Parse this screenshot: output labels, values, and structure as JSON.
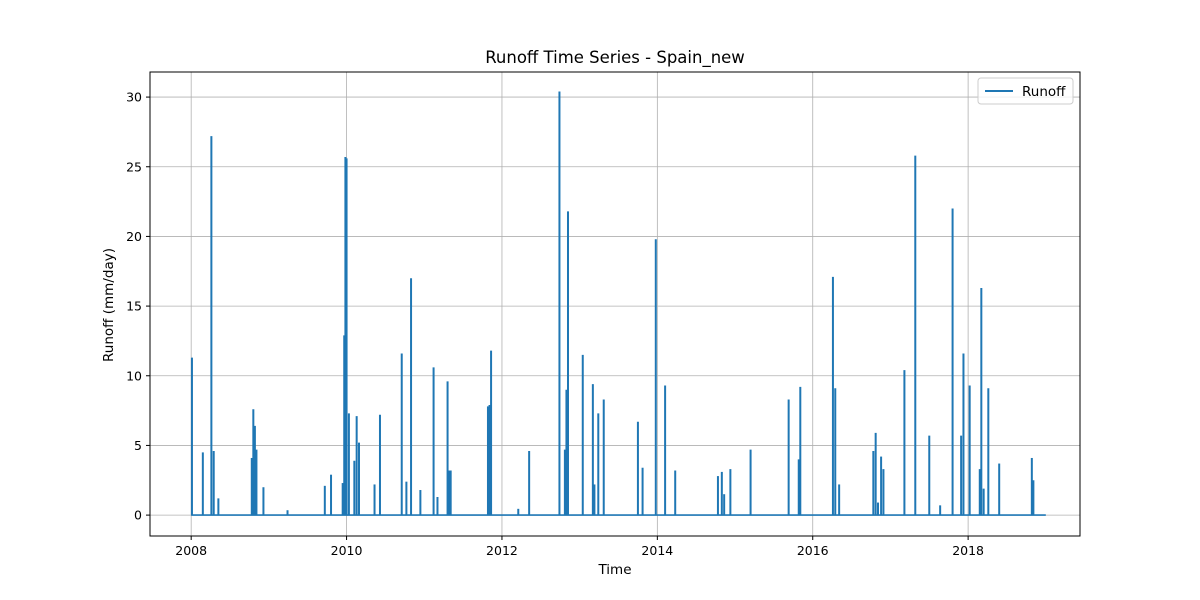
{
  "chart_data": {
    "type": "line",
    "title": "Runoff Time Series - Spain_new",
    "xlabel": "Time",
    "ylabel": "Runoff (mm/day)",
    "xlim": [
      2007.47,
      2019.44
    ],
    "ylim": [
      -1.5,
      31.8
    ],
    "x_ticks": [
      2008,
      2010,
      2012,
      2014,
      2016,
      2018
    ],
    "x_tick_labels": [
      "2008",
      "2010",
      "2012",
      "2014",
      "2016",
      "2018"
    ],
    "y_ticks": [
      0,
      5,
      10,
      15,
      20,
      25,
      30
    ],
    "y_tick_labels": [
      "0",
      "5",
      "10",
      "15",
      "20",
      "25",
      "30"
    ],
    "grid": true,
    "legend_position": "top-right",
    "series": [
      {
        "name": "Runoff",
        "color": "#1f77b4",
        "x_range": [
          2008.0,
          2019.0
        ],
        "spikes": [
          [
            2008.01,
            11.3
          ],
          [
            2008.15,
            4.5
          ],
          [
            2008.26,
            27.2
          ],
          [
            2008.29,
            4.6
          ],
          [
            2008.35,
            1.2
          ],
          [
            2008.78,
            4.1
          ],
          [
            2008.8,
            7.6
          ],
          [
            2008.82,
            6.4
          ],
          [
            2008.84,
            4.7
          ],
          [
            2008.93,
            2.0
          ],
          [
            2009.24,
            0.35
          ],
          [
            2009.72,
            2.1
          ],
          [
            2009.8,
            2.9
          ],
          [
            2009.95,
            2.3
          ],
          [
            2009.97,
            12.9
          ],
          [
            2009.985,
            25.7
          ],
          [
            2010.0,
            25.6
          ],
          [
            2010.03,
            7.3
          ],
          [
            2010.1,
            3.9
          ],
          [
            2010.13,
            7.1
          ],
          [
            2010.16,
            5.2
          ],
          [
            2010.36,
            2.2
          ],
          [
            2010.43,
            7.2
          ],
          [
            2010.71,
            11.6
          ],
          [
            2010.77,
            2.4
          ],
          [
            2010.83,
            17.0
          ],
          [
            2010.95,
            1.8
          ],
          [
            2011.12,
            10.6
          ],
          [
            2011.17,
            1.3
          ],
          [
            2011.3,
            9.6
          ],
          [
            2011.32,
            3.2
          ],
          [
            2011.34,
            3.2
          ],
          [
            2011.82,
            7.8
          ],
          [
            2011.84,
            7.9
          ],
          [
            2011.86,
            11.8
          ],
          [
            2012.21,
            0.45
          ],
          [
            2012.35,
            4.6
          ],
          [
            2012.74,
            30.4
          ],
          [
            2012.81,
            4.7
          ],
          [
            2012.83,
            9.0
          ],
          [
            2012.85,
            21.8
          ],
          [
            2013.04,
            11.5
          ],
          [
            2013.17,
            9.4
          ],
          [
            2013.19,
            2.2
          ],
          [
            2013.24,
            7.3
          ],
          [
            2013.31,
            8.3
          ],
          [
            2013.75,
            6.7
          ],
          [
            2013.81,
            3.4
          ],
          [
            2013.98,
            19.8
          ],
          [
            2014.1,
            9.3
          ],
          [
            2014.23,
            3.2
          ],
          [
            2014.78,
            2.8
          ],
          [
            2014.83,
            3.1
          ],
          [
            2014.86,
            1.5
          ],
          [
            2014.94,
            3.3
          ],
          [
            2015.2,
            4.7
          ],
          [
            2015.69,
            8.3
          ],
          [
            2015.82,
            4.0
          ],
          [
            2015.84,
            9.2
          ],
          [
            2016.26,
            17.1
          ],
          [
            2016.29,
            9.1
          ],
          [
            2016.34,
            2.2
          ],
          [
            2016.78,
            4.6
          ],
          [
            2016.81,
            5.9
          ],
          [
            2016.84,
            0.9
          ],
          [
            2016.88,
            4.2
          ],
          [
            2016.91,
            3.3
          ],
          [
            2017.18,
            10.4
          ],
          [
            2017.32,
            25.8
          ],
          [
            2017.5,
            5.7
          ],
          [
            2017.64,
            0.7
          ],
          [
            2017.8,
            22.0
          ],
          [
            2017.91,
            5.7
          ],
          [
            2017.94,
            11.6
          ],
          [
            2018.02,
            9.3
          ],
          [
            2018.15,
            3.3
          ],
          [
            2018.17,
            16.3
          ],
          [
            2018.2,
            1.9
          ],
          [
            2018.26,
            9.1
          ],
          [
            2018.4,
            3.7
          ],
          [
            2018.82,
            4.1
          ],
          [
            2018.84,
            2.5
          ]
        ]
      }
    ]
  }
}
